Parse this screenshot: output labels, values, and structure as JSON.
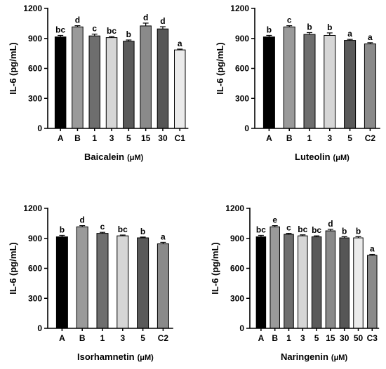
{
  "chart_data": [
    {
      "type": "bar",
      "xlabel": "Baicalein",
      "xunit": "(μM)",
      "ylabel": "IL-6 (pg/mL)",
      "ylim": [
        0,
        1200
      ],
      "yticks": [
        0,
        300,
        600,
        900,
        1200
      ],
      "categories": [
        "A",
        "B",
        "1",
        "3",
        "5",
        "15",
        "30",
        "C1"
      ],
      "values": [
        915,
        1015,
        925,
        908,
        872,
        1025,
        995,
        785
      ],
      "errors": [
        15,
        12,
        18,
        10,
        12,
        28,
        22,
        8
      ],
      "significance": [
        "bc",
        "d",
        "c",
        "bc",
        "b",
        "d",
        "d",
        "a"
      ],
      "colors": [
        "#000000",
        "#9a9a9a",
        "#6e6e6e",
        "#d6d6d6",
        "#5a5a5a",
        "#8a8a8a",
        "#565656",
        "#ebebeb"
      ]
    },
    {
      "type": "bar",
      "xlabel": "Luteolin",
      "xunit": "(μM)",
      "ylabel": "IL-6 (pg/mL)",
      "ylim": [
        0,
        1200
      ],
      "yticks": [
        0,
        300,
        600,
        900,
        1200
      ],
      "categories": [
        "A",
        "B",
        "1",
        "3",
        "5",
        "C2"
      ],
      "values": [
        915,
        1015,
        940,
        930,
        880,
        845
      ],
      "errors": [
        15,
        12,
        18,
        25,
        10,
        12
      ],
      "significance": [
        "b",
        "c",
        "b",
        "b",
        "a",
        "a"
      ],
      "colors": [
        "#000000",
        "#9a9a9a",
        "#6e6e6e",
        "#d6d6d6",
        "#5a5a5a",
        "#8a8a8a"
      ]
    },
    {
      "type": "bar",
      "xlabel": "Isorhamnetin",
      "xunit": "(μM)",
      "ylabel": "IL-6 (pg/mL)",
      "ylim": [
        0,
        1200
      ],
      "yticks": [
        0,
        300,
        600,
        900,
        1200
      ],
      "categories": [
        "A",
        "B",
        "1",
        "3",
        "5",
        "C2"
      ],
      "values": [
        915,
        1015,
        950,
        925,
        905,
        845
      ],
      "errors": [
        15,
        12,
        10,
        8,
        8,
        15
      ],
      "significance": [
        "b",
        "d",
        "c",
        "bc",
        "b",
        "a"
      ],
      "colors": [
        "#000000",
        "#9a9a9a",
        "#6e6e6e",
        "#d6d6d6",
        "#5a5a5a",
        "#8a8a8a"
      ]
    },
    {
      "type": "bar",
      "xlabel": "Naringenin",
      "xunit": "(μM)",
      "ylabel": "IL-6 (pg/mL)",
      "ylim": [
        0,
        1200
      ],
      "yticks": [
        0,
        300,
        600,
        900,
        1200
      ],
      "categories": [
        "A",
        "B",
        "1",
        "3",
        "5",
        "15",
        "30",
        "50",
        "C3"
      ],
      "values": [
        915,
        1015,
        940,
        925,
        915,
        975,
        905,
        905,
        730
      ],
      "errors": [
        15,
        12,
        10,
        10,
        10,
        15,
        12,
        12,
        10
      ],
      "significance": [
        "bc",
        "e",
        "c",
        "bc",
        "bc",
        "d",
        "b",
        "b",
        "a"
      ],
      "colors": [
        "#000000",
        "#9a9a9a",
        "#6e6e6e",
        "#d6d6d6",
        "#5a5a5a",
        "#8a8a8a",
        "#565656",
        "#ebebeb",
        "#8a8a8a"
      ]
    }
  ]
}
